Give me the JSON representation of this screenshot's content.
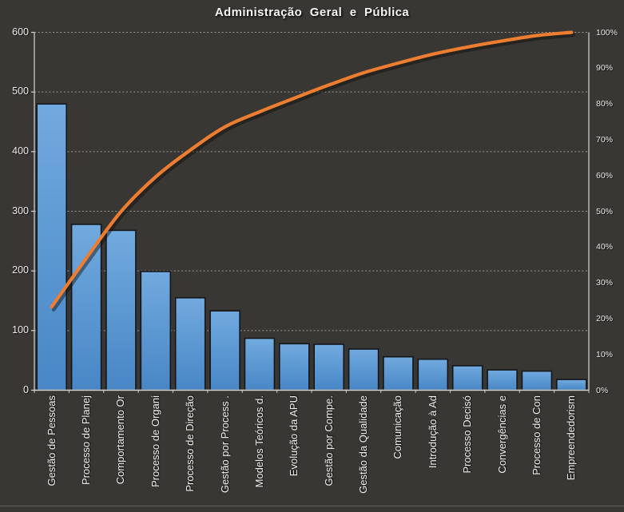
{
  "chart_data": {
    "type": "bar",
    "subtype": "pareto-with-cumulative-line",
    "title": "Administração Geral e Pública",
    "categories": [
      "Gestão de Pessoas",
      "Processo de Planej",
      "Comportamento Or",
      "Processo de Organi",
      "Processo de Direção",
      "Gestão por Process .",
      "Modelos Teóricos d.",
      "Evolução da APU",
      "Gestão por Compe.",
      "Gestão da Qualidade",
      "Comunicação",
      "Introdução à Ad",
      "Processo Decisó",
      "Convergências e",
      "Processo de Con",
      "Empreendedorism"
    ],
    "values": [
      480,
      278,
      268,
      199,
      155,
      133,
      87,
      78,
      77,
      69,
      56,
      52,
      41,
      34,
      32,
      18
    ],
    "cumulative_percent": [
      23.3,
      36.9,
      49.9,
      59.6,
      67.1,
      73.6,
      77.8,
      81.6,
      85.3,
      88.7,
      91.4,
      93.9,
      95.9,
      97.6,
      99.1,
      100
    ],
    "left_axis": {
      "min": 0,
      "max": 600,
      "step": 100,
      "ticks": [
        "0",
        "100",
        "200",
        "300",
        "400",
        "500",
        "600"
      ]
    },
    "right_axis": {
      "min": 0,
      "max": 100,
      "step": 10,
      "ticks": [
        "0%",
        "10%",
        "20%",
        "30%",
        "40%",
        "50%",
        "60%",
        "70%",
        "80%",
        "90%",
        "100%"
      ]
    },
    "legend": "none",
    "grid": "horizontal-dotted",
    "colors": {
      "background": "#393734",
      "bar_top": "#71aade",
      "bar_bottom": "#4886c6",
      "bar_border": "#14161a",
      "line": "#ed7d31",
      "text": "#ecebe9",
      "gridline": "#c2bfba",
      "axis": "#d8d5d0"
    }
  }
}
